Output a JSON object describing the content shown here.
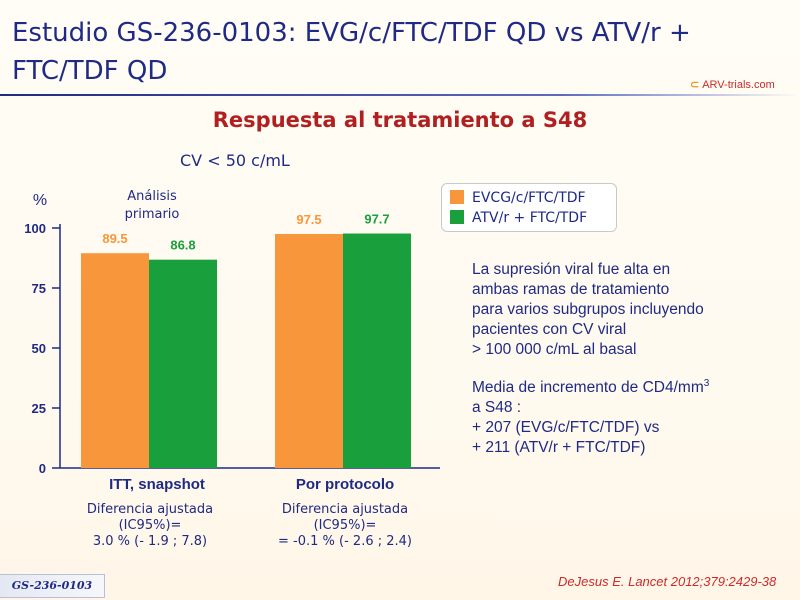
{
  "header": {
    "title": "Estudio GS-236-0103: EVG/c/FTC/TDF QD vs ATV/r + FTC/TDF QD",
    "logo_text": "ARV-trials.com"
  },
  "subtitle": "Respuesta al tratamiento a S48",
  "cv_label": "CV < 50 c/mL",
  "chart_data": {
    "type": "bar",
    "ylabel": "%",
    "ylim": [
      0,
      100
    ],
    "yticks": [
      0,
      25,
      50,
      75,
      100
    ],
    "categories": [
      "ITT, snapshot",
      "Por protocolo"
    ],
    "series": [
      {
        "name": "EVCG/c/FTC/TDF",
        "color": "#f7963a",
        "values": [
          89.5,
          97.5
        ]
      },
      {
        "name": "ATV/r + FTC/TDF",
        "color": "#19a03c",
        "values": [
          86.8,
          97.7
        ]
      }
    ],
    "annotation": "Análisis\nprimario",
    "differences": [
      "Diferencia ajustada\n(IC95%)=\n3.0 % (- 1.9 ; 7.8)",
      "Diferencia ajustada\n(IC95%)=\n= -0.1 % (- 2.6 ; 2.4)"
    ],
    "legend": "top-right"
  },
  "notes": {
    "para1": "La supresión viral fue alta en\nambas ramas de tratamiento\npara varios subgrupos incluyendo\npacientes con CV viral\n > 100 000 c/mL al basal",
    "para2_before_sup": "Media de incremento de CD4/mm",
    "para2_sup": "3",
    "para2_after": "\na S48 :\n+ 207 (EVG/c/FTC/TDF) vs\n+ 211 (ATV/r + FTC/TDF)"
  },
  "footer": {
    "study_id": "GS-236-0103",
    "citation": "DeJesus E. Lancet 2012;379:2429-38"
  }
}
